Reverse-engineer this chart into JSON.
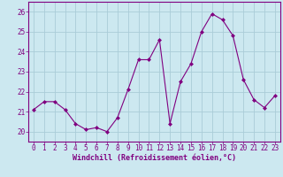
{
  "x": [
    0,
    1,
    2,
    3,
    4,
    5,
    6,
    7,
    8,
    9,
    10,
    11,
    12,
    13,
    14,
    15,
    16,
    17,
    18,
    19,
    20,
    21,
    22,
    23
  ],
  "y": [
    21.1,
    21.5,
    21.5,
    21.1,
    20.4,
    20.1,
    20.2,
    20.0,
    20.7,
    22.1,
    23.6,
    23.6,
    24.6,
    20.4,
    22.5,
    23.4,
    25.0,
    25.9,
    25.6,
    24.8,
    22.6,
    21.6,
    21.2,
    21.8
  ],
  "line_color": "#800080",
  "marker": "D",
  "marker_size": 2.0,
  "bg_color": "#cce8f0",
  "grid_color": "#aaccd8",
  "xlabel": "Windchill (Refroidissement éolien,°C)",
  "xlabel_color": "#800080",
  "tick_color": "#800080",
  "axis_color": "#800080",
  "ylim": [
    19.5,
    26.5
  ],
  "yticks": [
    20,
    21,
    22,
    23,
    24,
    25,
    26
  ],
  "xlim": [
    -0.5,
    23.5
  ],
  "xticks": [
    0,
    1,
    2,
    3,
    4,
    5,
    6,
    7,
    8,
    9,
    10,
    11,
    12,
    13,
    14,
    15,
    16,
    17,
    18,
    19,
    20,
    21,
    22,
    23
  ],
  "tick_fontsize": 5.5,
  "xlabel_fontsize": 6.0
}
